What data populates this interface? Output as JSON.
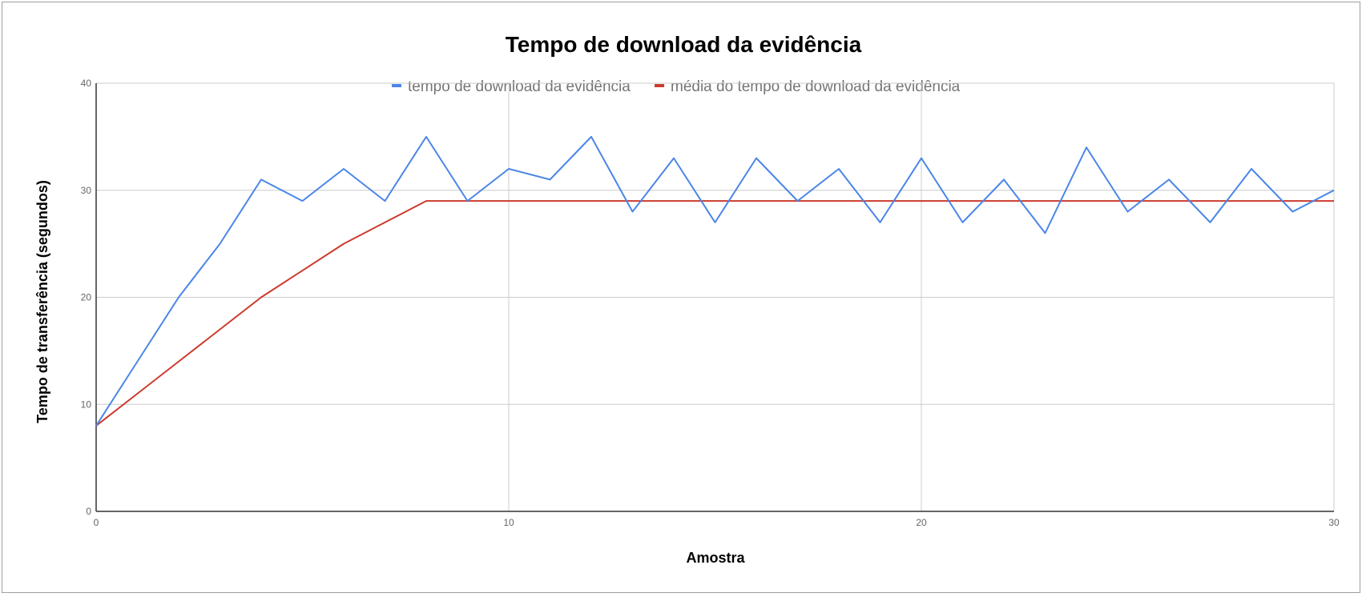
{
  "chart_data": {
    "type": "line",
    "title": "Tempo de download da evidência",
    "xlabel": "Amostra",
    "ylabel": "Tempo de transferência (segundos)",
    "xlim": [
      0,
      30
    ],
    "ylim": [
      0,
      40
    ],
    "x_ticks": [
      0,
      10,
      20,
      30
    ],
    "y_ticks": [
      0,
      10,
      20,
      30,
      40
    ],
    "grid": true,
    "legend_position": "top",
    "x": [
      0,
      1,
      2,
      3,
      4,
      5,
      6,
      7,
      8,
      9,
      10,
      11,
      12,
      13,
      14,
      15,
      16,
      17,
      18,
      19,
      20,
      21,
      22,
      23,
      24,
      25,
      26,
      27,
      28,
      29,
      30
    ],
    "series": [
      {
        "name": "tempo de download da evidência",
        "color": "#4a86e8",
        "values": [
          8,
          14,
          20,
          25,
          31,
          29,
          32,
          29,
          35,
          29,
          32,
          31,
          35,
          28,
          33,
          27,
          33,
          29,
          32,
          27,
          33,
          27,
          31,
          26,
          34,
          28,
          31,
          27,
          32,
          28,
          30
        ]
      },
      {
        "name": "média do tempo de download da evidência",
        "color": "#cc3b2e",
        "values": [
          8,
          11,
          14,
          17,
          20,
          22.5,
          25,
          27,
          29,
          29,
          29,
          29,
          29,
          29,
          29,
          29,
          29,
          29,
          29,
          29,
          29,
          29,
          29,
          29,
          29,
          29,
          29,
          29,
          29,
          29,
          29
        ]
      }
    ]
  }
}
